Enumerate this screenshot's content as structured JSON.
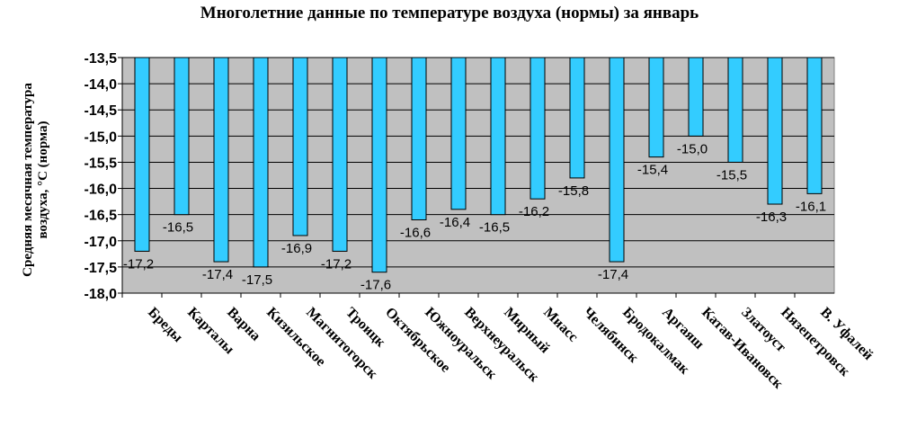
{
  "colors": {
    "plot_bg": "#c0c0c0",
    "bar_fill": "#33ccff",
    "bar_stroke": "#000000",
    "grid": "#000000"
  },
  "chart_data": {
    "type": "bar",
    "title": "Многолетние данные по температуре воздуха (нормы) за январь",
    "xlabel": "",
    "ylabel": "Средняя месячная температура воздуха, °С (норма)",
    "ylim": [
      -18.0,
      -13.5
    ],
    "yticks": [
      "-13,5",
      "-14,0",
      "-14,5",
      "-15,0",
      "-15,5",
      "-16,0",
      "-16,5",
      "-17,0",
      "-17,5",
      "-18,0"
    ],
    "grid": true,
    "categories": [
      "Бреды",
      "Карталы",
      "Варна",
      "Кизильское",
      "Магнитогорск",
      "Троицк",
      "Октябрьское",
      "Южноуральск",
      "Верхнеуральск",
      "Мирный",
      "Миасс",
      "Челябинск",
      "Бродокалмак",
      "Аргаяш",
      "Катав-Ивановск",
      "Златоуст",
      "Нязепетровск",
      "В. Уфалей"
    ],
    "values": [
      -17.2,
      -16.5,
      -17.4,
      -17.5,
      -16.9,
      -17.2,
      -17.6,
      -16.6,
      -16.4,
      -16.5,
      -16.2,
      -15.8,
      -17.4,
      -15.4,
      -15.0,
      -15.5,
      -16.3,
      -16.1
    ],
    "data_labels": [
      "-17,2",
      "-16,5",
      "-17,4",
      "-17,5",
      "-16,9",
      "-17,2",
      "-17,6",
      "-16,6",
      "-16,4",
      "-16,5",
      "-16,2",
      "-15,8",
      "-17,4",
      "-15,4",
      "-15,0",
      "-15,5",
      "-16,3",
      "-16,1"
    ]
  }
}
